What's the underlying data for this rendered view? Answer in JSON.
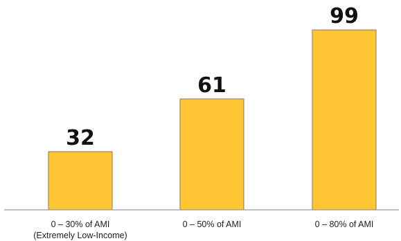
{
  "chart_data": {
    "type": "bar",
    "categories": [
      [
        "0 – 30% of AMI",
        "(Extremely Low-Income)"
      ],
      [
        "0 – 50% of AMI"
      ],
      [
        "0 – 80% of AMI"
      ]
    ],
    "values": [
      32,
      61,
      99
    ],
    "value_labels": [
      "32",
      "61",
      "99"
    ],
    "title": "",
    "xlabel": "",
    "ylabel": "",
    "ylim": [
      0,
      100
    ],
    "grid": false,
    "legend": "none",
    "colors": {
      "bar_fill": "#FFC533",
      "bar_stroke": "#8a7a55",
      "axis": "#999999",
      "value_text": "#111111",
      "tick_text": "#222222"
    }
  }
}
